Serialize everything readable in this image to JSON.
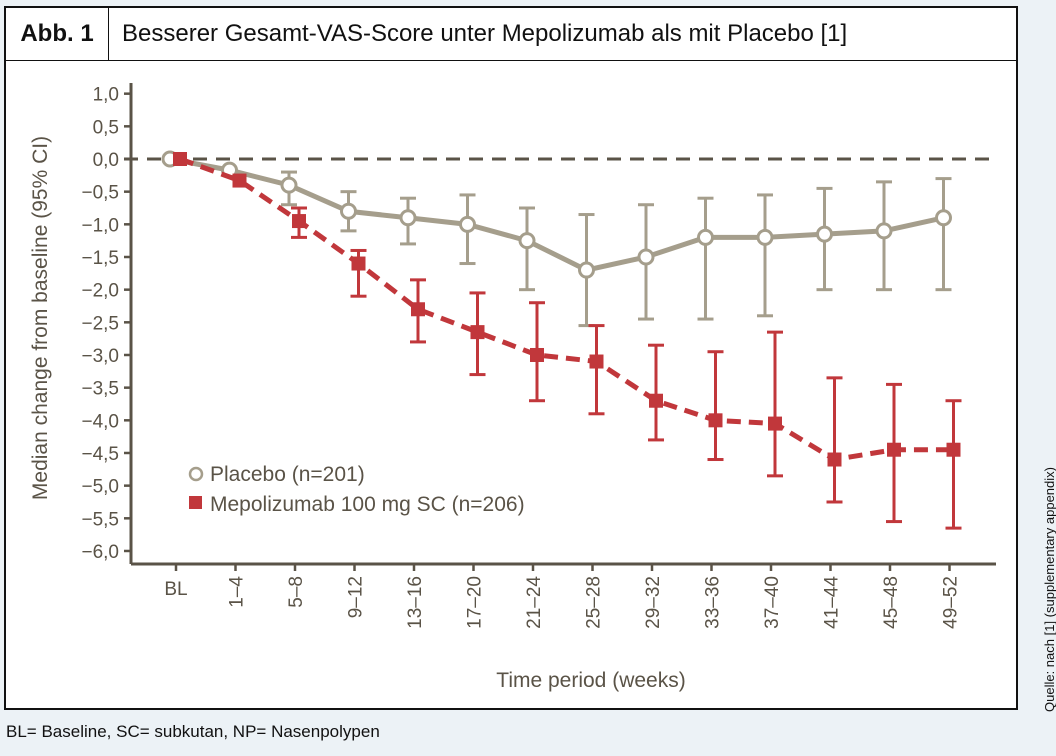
{
  "figure": {
    "number": "Abb. 1",
    "title": "Besserer Gesamt-VAS-Score unter Mepolizumab als mit Placebo [1]",
    "source": "Quelle: nach [1] (supplementary appendix)",
    "footnote": "BL= Baseline, SC= subkutan, NP= Nasenpolypen"
  },
  "colors": {
    "placebo": "#a59e8c",
    "mepolizumab": "#c1373b",
    "axis": "#5a5347",
    "reference_line": "#5a5347"
  },
  "chart_data": {
    "type": "line",
    "title": "",
    "xlabel": "Time period (weeks)",
    "ylabel": "Median change from baseline (95% CI)",
    "ylim": [
      -6.0,
      1.0
    ],
    "yticks": [
      1.0,
      0.5,
      0.0,
      -0.5,
      -1.0,
      -1.5,
      -2.0,
      -2.5,
      -3.0,
      -3.5,
      -4.0,
      -4.5,
      -5.0,
      -5.5,
      -6.0
    ],
    "ytick_labels": [
      "1,0",
      "0,5",
      "0,0",
      "−0,5",
      "−1,0",
      "−1,5",
      "−2,0",
      "−2,5",
      "−3,0",
      "−3,5",
      "−4,0",
      "−4,5",
      "−5,0",
      "−5,5",
      "−6,0"
    ],
    "categories": [
      "BL",
      "1–4",
      "5–8",
      "9–12",
      "13–16",
      "17–20",
      "21–24",
      "25–28",
      "29–32",
      "33–36",
      "37–40",
      "41–44",
      "45–48",
      "49–52"
    ],
    "reference_line": 0.0,
    "grid": false,
    "legend_position": "bottom-left",
    "series": [
      {
        "name": "Placebo (n=201)",
        "marker": "open-circle",
        "line_style": "solid",
        "values": [
          0.0,
          -0.17,
          -0.4,
          -0.8,
          -0.9,
          -1.0,
          -1.25,
          -1.7,
          -1.5,
          -1.2,
          -1.2,
          -1.15,
          -1.1,
          -0.9
        ],
        "ci_low": [
          null,
          null,
          -0.7,
          -1.1,
          -1.3,
          -1.6,
          -2.0,
          -2.55,
          -2.45,
          -2.45,
          -2.4,
          -2.0,
          -2.0,
          -2.0
        ],
        "ci_high": [
          null,
          null,
          -0.2,
          -0.5,
          -0.6,
          -0.55,
          -0.75,
          -0.85,
          -0.7,
          -0.6,
          -0.55,
          -0.45,
          -0.35,
          -0.3
        ]
      },
      {
        "name": "Mepolizumab 100 mg SC (n=206)",
        "marker": "filled-square",
        "line_style": "dashed",
        "values": [
          0.0,
          -0.33,
          -0.95,
          -1.6,
          -2.3,
          -2.65,
          -3.0,
          -3.1,
          -3.7,
          -4.0,
          -4.05,
          -4.6,
          -4.45,
          -4.45
        ],
        "ci_low": [
          null,
          null,
          -1.2,
          -2.1,
          -2.8,
          -3.3,
          -3.7,
          -3.9,
          -4.3,
          -4.6,
          -4.85,
          -5.25,
          -5.55,
          -5.65
        ],
        "ci_high": [
          null,
          null,
          -0.75,
          -1.4,
          -1.85,
          -2.05,
          -2.2,
          -2.55,
          -2.85,
          -2.95,
          -2.65,
          -3.35,
          -3.45,
          -3.7
        ]
      }
    ]
  }
}
